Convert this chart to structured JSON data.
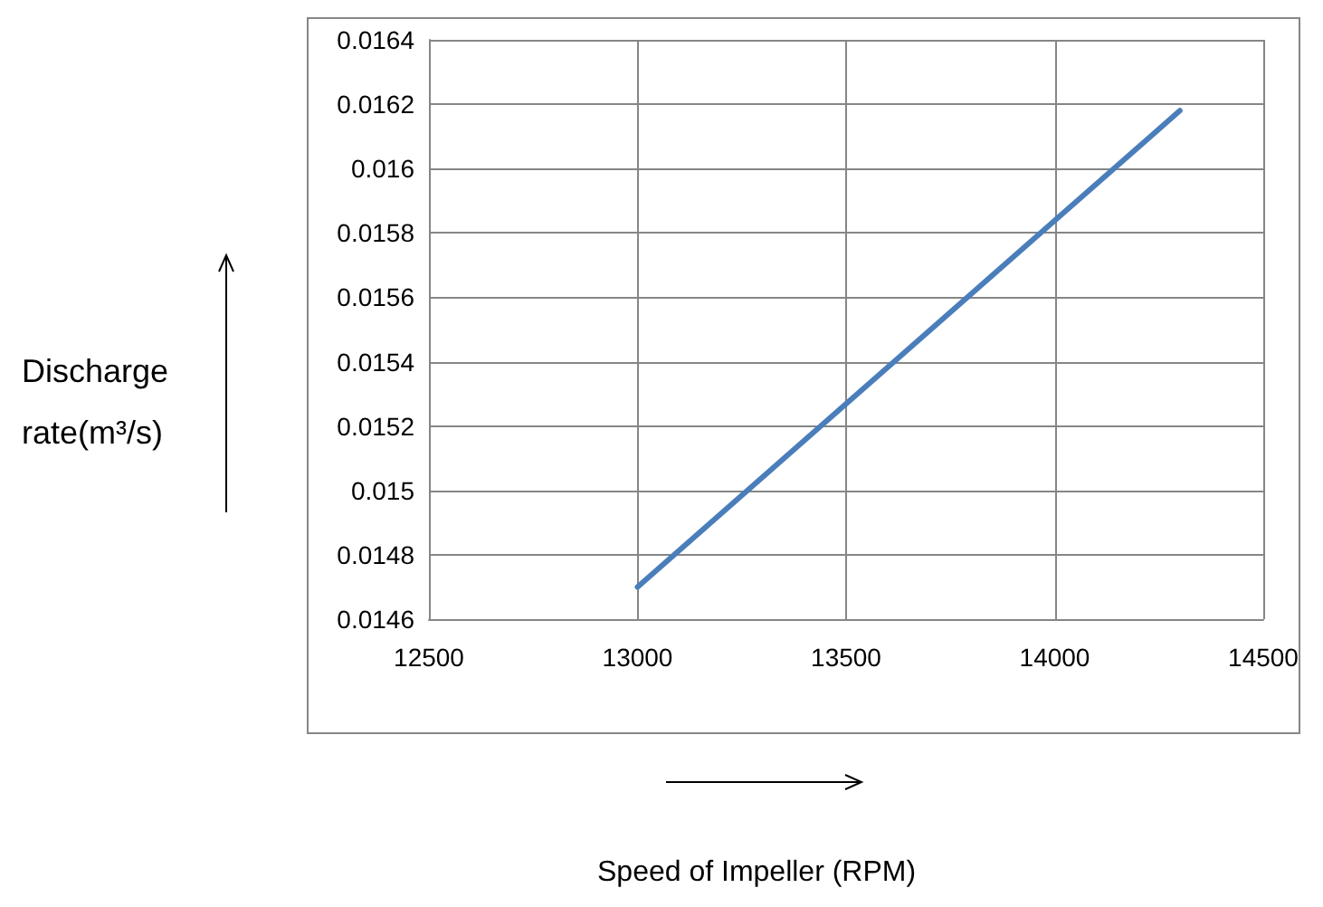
{
  "chart_data": {
    "type": "line",
    "annotations": [
      "Discharge\nrate(m³/s)",
      "Speed of Impeller (RPM)"
    ],
    "x": [
      13000,
      14300
    ],
    "series": [
      {
        "color": "#4a7ebb",
        "values": [
          0.0147,
          0.01618
        ]
      }
    ],
    "xlim": [
      12500,
      14500
    ],
    "xticks": [
      12500,
      13000,
      13500,
      14000,
      14500
    ],
    "ylim": [
      0.0146,
      0.0164
    ],
    "yticks": [
      0.0146,
      0.0148,
      0.015,
      0.0152,
      0.0154,
      0.0156,
      0.0158,
      0.016,
      0.0162,
      0.0164
    ],
    "grid": true,
    "marker": "none",
    "line_style": "solid"
  }
}
